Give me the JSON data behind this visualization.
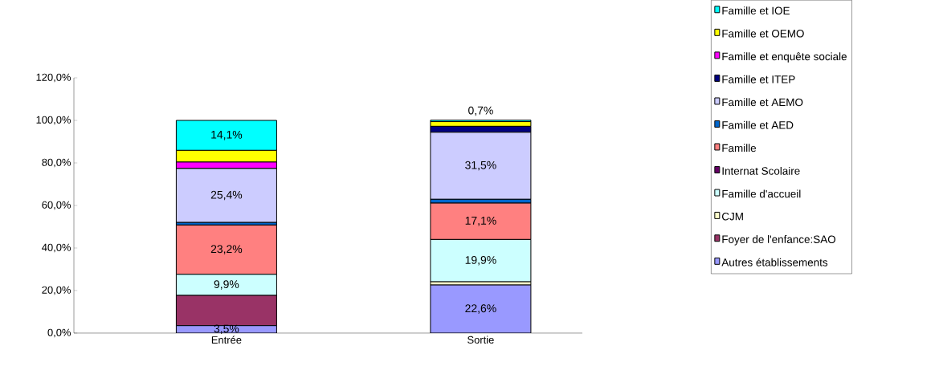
{
  "chart_data": {
    "type": "bar",
    "stacked": true,
    "categories": [
      "Entrée",
      "Sortie"
    ],
    "ylim": [
      0,
      120
    ],
    "yticks": [
      {
        "value": 0,
        "label": "0,0%"
      },
      {
        "value": 20,
        "label": "20,0%"
      },
      {
        "value": 40,
        "label": "40,0%"
      },
      {
        "value": 60,
        "label": "60,0%"
      },
      {
        "value": 80,
        "label": "80,0%"
      },
      {
        "value": 100,
        "label": "100,0%"
      },
      {
        "value": 120,
        "label": "120,0%"
      }
    ],
    "legend": "right",
    "grid": false,
    "series": [
      {
        "name": "Autres établissements",
        "color": "#9999ff",
        "values": [
          3.5,
          22.6
        ],
        "value_labels": [
          "3,5%",
          "22,6%"
        ]
      },
      {
        "name": "Foyer de l'enfance:SAO",
        "color": "#993366",
        "values": [
          14.2,
          0
        ]
      },
      {
        "name": "CJM",
        "color": "#ffffcc",
        "values": [
          0,
          1.5
        ]
      },
      {
        "name": "Famille d'accueil",
        "color": "#ccffff",
        "values": [
          9.9,
          19.9
        ],
        "value_labels": [
          "9,9%",
          "19,9%"
        ]
      },
      {
        "name": "Internat Scolaire",
        "color": "#660066",
        "values": [
          0,
          0
        ]
      },
      {
        "name": "Famille",
        "color": "#ff8080",
        "values": [
          23.2,
          17.1
        ],
        "value_labels": [
          "23,2%",
          "17,1%"
        ]
      },
      {
        "name": "Famille et AED",
        "color": "#0066cc",
        "values": [
          1.2,
          1.8
        ]
      },
      {
        "name": "Famille et AEMO",
        "color": "#ccccff",
        "values": [
          25.4,
          31.5
        ],
        "value_labels": [
          "25,4%",
          "31,5%"
        ]
      },
      {
        "name": "Famille et ITEP",
        "color": "#000080",
        "values": [
          0,
          2.8
        ]
      },
      {
        "name": "Famille et enquête sociale",
        "color": "#ff00ff",
        "values": [
          3.0,
          0
        ]
      },
      {
        "name": "Famille et OEMO",
        "color": "#ffff00",
        "values": [
          5.5,
          2.2
        ]
      },
      {
        "name": "Famille et IOE",
        "color": "#00ffff",
        "values": [
          14.1,
          0.7
        ],
        "value_labels": [
          "14,1%",
          "0,7%"
        ]
      }
    ]
  }
}
